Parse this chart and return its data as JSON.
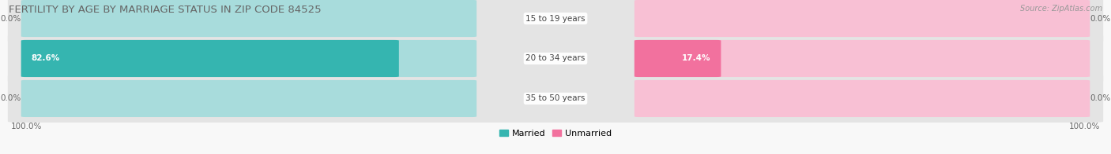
{
  "title": "FERTILITY BY AGE BY MARRIAGE STATUS IN ZIP CODE 84525",
  "source": "Source: ZipAtlas.com",
  "rows": [
    {
      "label": "15 to 19 years",
      "married": 0.0,
      "unmarried": 0.0
    },
    {
      "label": "20 to 34 years",
      "married": 82.6,
      "unmarried": 17.4
    },
    {
      "label": "35 to 50 years",
      "married": 0.0,
      "unmarried": 0.0
    }
  ],
  "married_color": "#35b5b0",
  "unmarried_color": "#f2719e",
  "married_light": "#a8dcdc",
  "unmarried_light": "#f8c0d4",
  "pill_bg": "#e8e8e8",
  "row_sep": "#d0d0d0",
  "max_val": 100.0,
  "title_fontsize": 9.5,
  "label_fontsize": 7.5,
  "value_fontsize": 7.5,
  "tick_fontsize": 7.5,
  "source_fontsize": 7.0,
  "legend_fontsize": 8.0
}
